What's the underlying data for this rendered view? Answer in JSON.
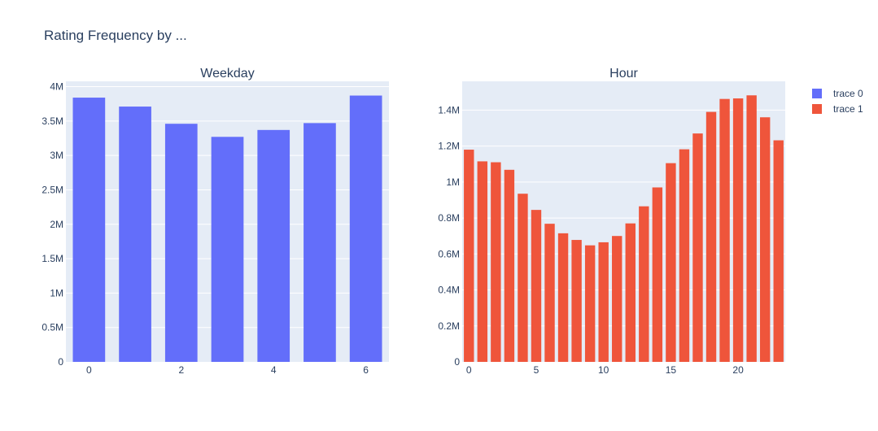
{
  "title": "Rating Frequency by ...",
  "legend": {
    "items": [
      {
        "label": "trace 0",
        "color": "#636efa"
      },
      {
        "label": "trace 1",
        "color": "#ef553b"
      }
    ]
  },
  "chart_data": [
    {
      "type": "bar",
      "title": "Weekday",
      "series": [
        {
          "name": "trace 0",
          "color": "#636efa",
          "x": [
            0,
            1,
            2,
            3,
            4,
            5,
            6
          ],
          "values": [
            3840000,
            3710000,
            3460000,
            3270000,
            3370000,
            3470000,
            3870000
          ]
        }
      ],
      "xticks": [
        0,
        2,
        4,
        6
      ],
      "xtick_labels": [
        "0",
        "2",
        "4",
        "6"
      ],
      "yticks": [
        0,
        500000,
        1000000,
        1500000,
        2000000,
        2500000,
        3000000,
        3500000,
        4000000
      ],
      "ytick_labels": [
        "0",
        "0.5M",
        "1M",
        "1.5M",
        "2M",
        "2.5M",
        "3M",
        "3.5M",
        "4M"
      ],
      "xlim": [
        -0.5,
        6.5
      ],
      "ylim": [
        0,
        4077000
      ],
      "grid": true
    },
    {
      "type": "bar",
      "title": "Hour",
      "series": [
        {
          "name": "trace 1",
          "color": "#ef553b",
          "x": [
            0,
            1,
            2,
            3,
            4,
            5,
            6,
            7,
            8,
            9,
            10,
            11,
            12,
            13,
            14,
            15,
            16,
            17,
            18,
            19,
            20,
            21,
            22,
            23
          ],
          "values": [
            1180000,
            1115000,
            1110000,
            1068000,
            935000,
            845000,
            768000,
            715000,
            678000,
            648000,
            665000,
            700000,
            770000,
            865000,
            970000,
            1105000,
            1182000,
            1270000,
            1390000,
            1462000,
            1465000,
            1482000,
            1360000,
            1232000
          ]
        }
      ],
      "xticks": [
        0,
        5,
        10,
        15,
        20
      ],
      "xtick_labels": [
        "0",
        "5",
        "10",
        "15",
        "20"
      ],
      "yticks": [
        0,
        200000,
        400000,
        600000,
        800000,
        1000000,
        1200000,
        1400000
      ],
      "ytick_labels": [
        "0",
        "0.2M",
        "0.4M",
        "0.6M",
        "0.8M",
        "1M",
        "1.2M",
        "1.4M"
      ],
      "xlim": [
        -0.5,
        23.5
      ],
      "ylim": [
        0,
        1560000
      ],
      "grid": true
    }
  ]
}
